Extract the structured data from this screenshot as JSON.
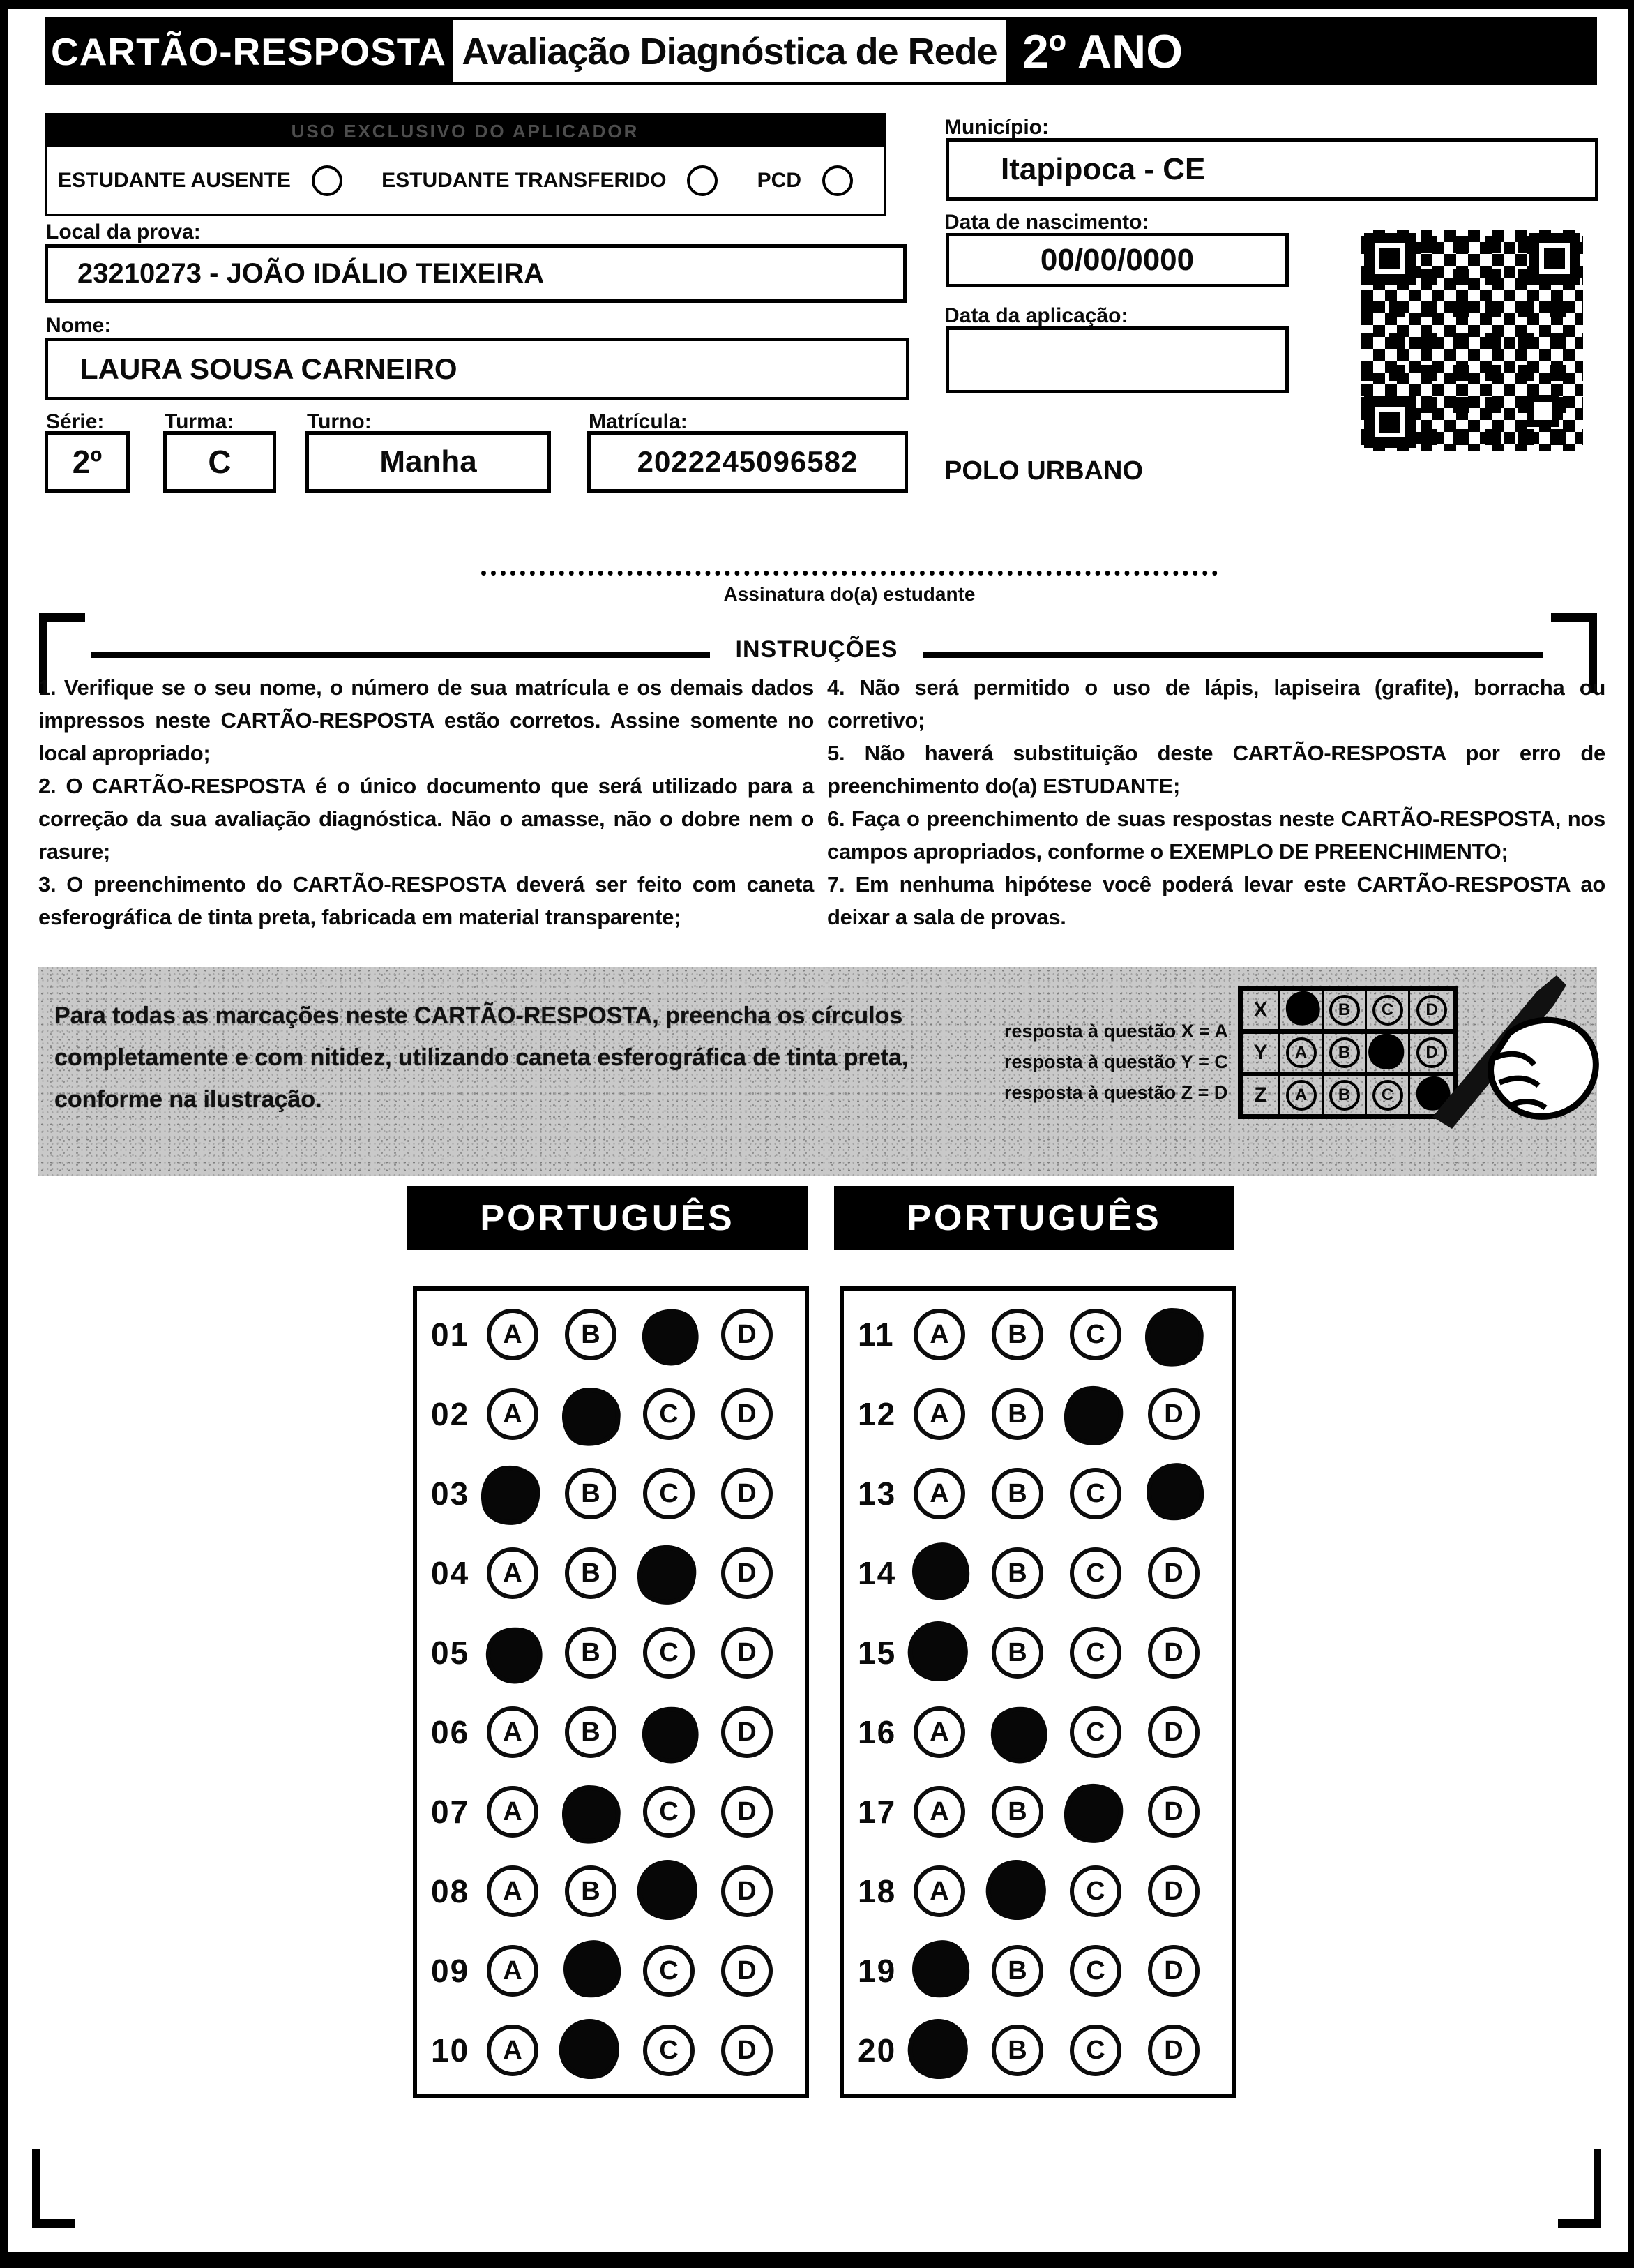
{
  "header": {
    "card_title": "CARTÃO-RESPOSTA",
    "assessment_title": "Avaliação Diagnóstica de Rede",
    "grade": "2º ANO"
  },
  "applicator": {
    "bar_label": "USO EXCLUSIVO DO APLICADOR",
    "options": [
      {
        "label": "ESTUDANTE AUSENTE"
      },
      {
        "label": "ESTUDANTE TRANSFERIDO"
      },
      {
        "label": "PCD"
      }
    ]
  },
  "student": {
    "local_label": "Local da prova:",
    "local_value": "23210273 - JOÃO IDÁLIO TEIXEIRA",
    "name_label": "Nome:",
    "name_value": "LAURA SOUSA CARNEIRO",
    "serie_label": "Série:",
    "serie_value": "2º",
    "turma_label": "Turma:",
    "turma_value": "C",
    "turno_label": "Turno:",
    "turno_value": "Manha",
    "matricula_label": "Matrícula:",
    "matricula_value": "2022245096582"
  },
  "right_panel": {
    "municipio_label": "Município:",
    "municipio_value": "Itapipoca - CE",
    "nascimento_label": "Data de nascimento:",
    "nascimento_value": "00/00/0000",
    "aplicacao_label": "Data da aplicação:",
    "aplicacao_value": "",
    "polo": "POLO URBANO"
  },
  "signature": {
    "label": "Assinatura do(a) estudante"
  },
  "instructions": {
    "title": "INSTRUÇÕES",
    "left_items": [
      "1. Verifique se o seu nome, o número de sua matrícula e os demais dados impressos neste CARTÃO-RESPOSTA estão corretos. Assine somente no local apropriado;",
      "2. O CARTÃO-RESPOSTA é o único documento que será utilizado para a correção da sua avaliação diagnóstica. Não o amasse, não o dobre nem o rasure;",
      "3. O preenchimento do CARTÃO-RESPOSTA deverá ser feito com caneta esferográfica de tinta preta, fabricada em material transparente;"
    ],
    "right_items": [
      "4. Não será permitido o uso de lápis, lapiseira (grafite), borracha ou corretivo;",
      "5. Não haverá substituição deste CARTÃO-RESPOSTA por erro de preenchimento do(a) ESTUDANTE;",
      "6. Faça o preenchimento de suas respostas neste CARTÃO-RESPOSTA, nos campos apropriados, conforme o EXEMPLO DE PREENCHIMENTO;",
      "7. Em nenhuma hipótese você poderá levar este CARTÃO-RESPOSTA ao deixar a sala de provas."
    ]
  },
  "example": {
    "text": "Para todas as marcações neste CARTÃO-RESPOSTA, preencha os círculos completamente e com nitidez, utilizando caneta esferográfica de tinta preta, conforme na ilustração.",
    "legend": [
      "resposta à questão X = A",
      "resposta à questão Y = C",
      "resposta à questão Z = D"
    ],
    "grid": [
      {
        "row": "X",
        "options": [
          "A",
          "B",
          "C",
          "D"
        ],
        "filled": "A"
      },
      {
        "row": "Y",
        "options": [
          "A",
          "B",
          "C",
          "D"
        ],
        "filled": "C"
      },
      {
        "row": "Z",
        "options": [
          "A",
          "B",
          "C",
          "D"
        ],
        "filled": "D"
      }
    ]
  },
  "answers": {
    "subject_left": "PORTUGUÊS",
    "subject_right": "PORTUGUÊS",
    "options": [
      "A",
      "B",
      "C",
      "D"
    ],
    "left": [
      {
        "q": "01",
        "filled": "C"
      },
      {
        "q": "02",
        "filled": "B"
      },
      {
        "q": "03",
        "filled": "A"
      },
      {
        "q": "04",
        "filled": "C"
      },
      {
        "q": "05",
        "filled": "A"
      },
      {
        "q": "06",
        "filled": "C"
      },
      {
        "q": "07",
        "filled": "B"
      },
      {
        "q": "08",
        "filled": "C"
      },
      {
        "q": "09",
        "filled": "B"
      },
      {
        "q": "10",
        "filled": "B"
      }
    ],
    "right": [
      {
        "q": "11",
        "filled": "D"
      },
      {
        "q": "12",
        "filled": "C"
      },
      {
        "q": "13",
        "filled": "D"
      },
      {
        "q": "14",
        "filled": "A"
      },
      {
        "q": "15",
        "filled": "A"
      },
      {
        "q": "16",
        "filled": "B"
      },
      {
        "q": "17",
        "filled": "C"
      },
      {
        "q": "18",
        "filled": "B"
      },
      {
        "q": "19",
        "filled": "A"
      },
      {
        "q": "20",
        "filled": "A"
      }
    ]
  },
  "colors": {
    "ink": "#0a0a0a",
    "band_gray": "#c9c9c9"
  }
}
